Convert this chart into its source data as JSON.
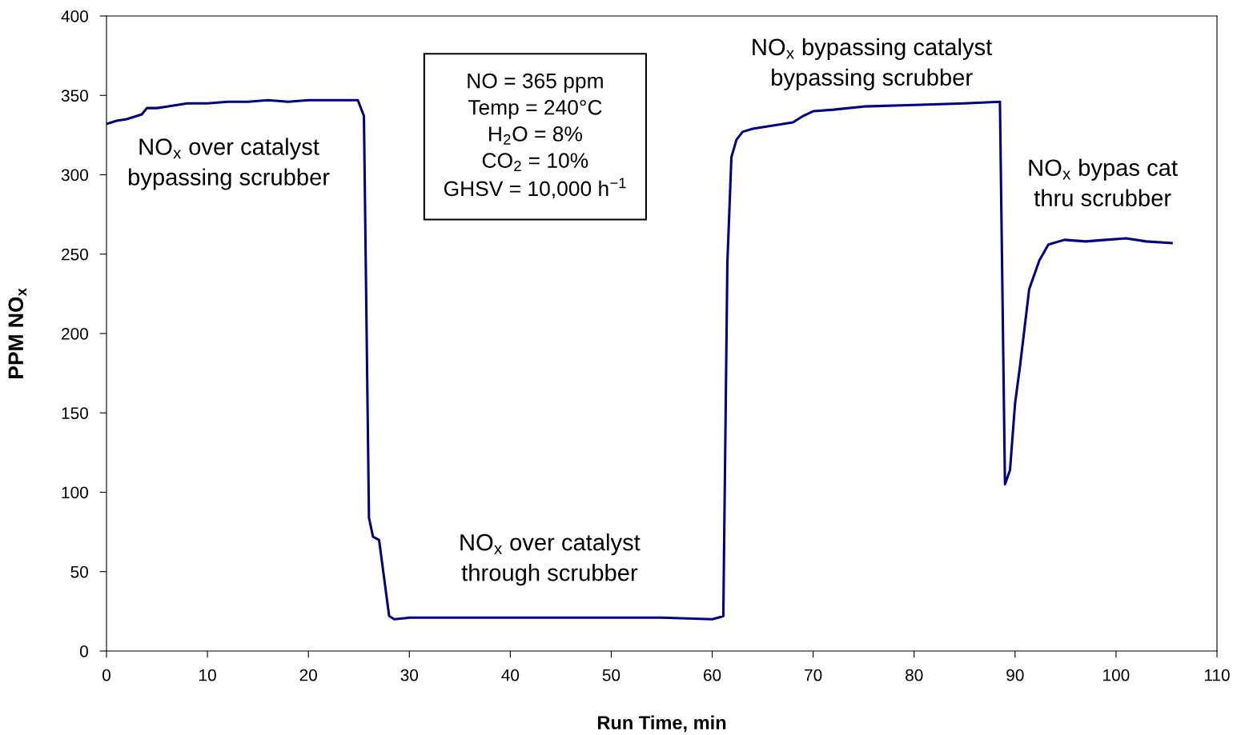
{
  "chart_data": {
    "type": "line",
    "xlabel": "Run Time, min",
    "ylabel": "PPM NO$_{x}$",
    "xlim": [
      0,
      110
    ],
    "xticks": [
      0,
      10,
      20,
      30,
      40,
      50,
      60,
      70,
      80,
      90,
      100,
      110
    ],
    "ylim": [
      0,
      400
    ],
    "yticks": [
      0,
      50,
      100,
      150,
      200,
      250,
      300,
      350,
      400
    ],
    "grid": false,
    "legend": false,
    "marker": "none",
    "line_style": "solid",
    "series": [
      {
        "color": "#000080",
        "x": [
          0,
          1,
          2,
          3,
          3.5,
          4,
          5,
          6,
          7,
          8,
          10,
          12,
          14,
          16,
          18,
          20,
          22,
          24.9,
          25.5,
          26.0,
          26.4,
          27.0,
          28.0,
          28.5,
          30,
          35,
          40,
          45,
          50,
          55,
          60,
          60.6,
          61.1,
          61.5,
          61.9,
          62.4,
          63,
          64,
          66,
          68,
          69,
          70,
          72,
          75,
          80,
          85,
          88.5,
          89.0,
          89.5,
          90.0,
          90.5,
          91.4,
          92.4,
          93.3,
          94.9,
          97,
          99,
          101,
          103,
          105.5
        ],
        "values": [
          332,
          334,
          335,
          337,
          338,
          342,
          342,
          343,
          344,
          345,
          345,
          346,
          346,
          347,
          346,
          347,
          347,
          347,
          337,
          84,
          72,
          70,
          22,
          20,
          21,
          21,
          21,
          21,
          21,
          21,
          20,
          21,
          22,
          244,
          311,
          322,
          327,
          329,
          331,
          333,
          337,
          340,
          341,
          343,
          344,
          345,
          346,
          105,
          114,
          156,
          180,
          228,
          246,
          256,
          259,
          258,
          259,
          260,
          258,
          257
        ]
      }
    ],
    "annotations": [
      "NO$_{x}$ over catalyst\nbypassing scrubber",
      "NO$_{x}$ over catalyst\nthrough scrubber",
      "NO$_{x}$ bypassing catalyst\nbypassing scrubber",
      "NO$_{x}$ bypas cat\nthru scrubber",
      "NO = 365 ppm\nTemp = 240°C\nH$_{2}$O = 8%\nCO$_{2}$ = 10%\nGHSV = 10,000 h$^{−1}$"
    ]
  }
}
